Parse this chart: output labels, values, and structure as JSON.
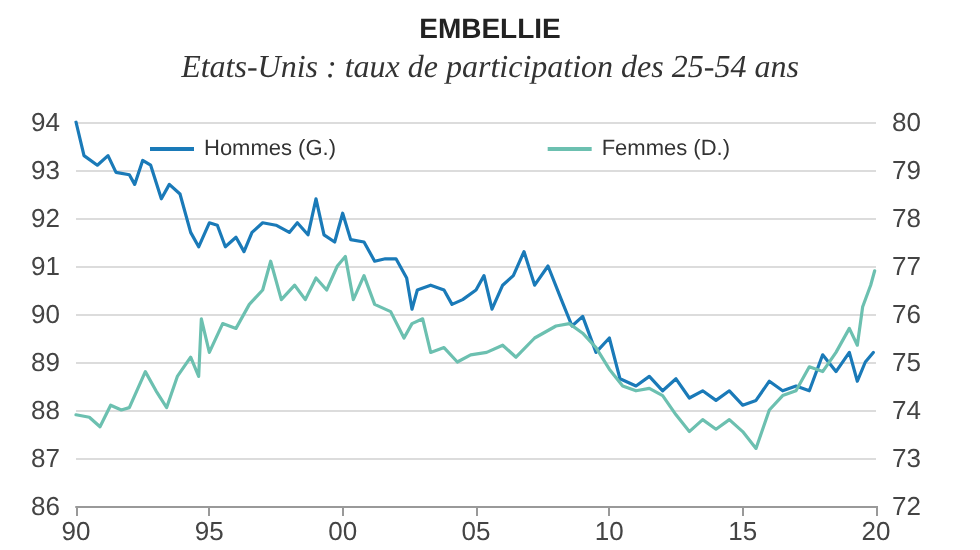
{
  "chart_data": {
    "type": "line",
    "title": "EMBELLIE",
    "subtitle": "Etats-Unis : taux de participation des 25-54 ans",
    "xlim": [
      1990,
      2020
    ],
    "xticks": [
      {
        "value": 1990,
        "label": "90"
      },
      {
        "value": 1995,
        "label": "95"
      },
      {
        "value": 2000,
        "label": "00"
      },
      {
        "value": 2005,
        "label": "05"
      },
      {
        "value": 2010,
        "label": "10"
      },
      {
        "value": 2015,
        "label": "15"
      },
      {
        "value": 2020,
        "label": "20"
      }
    ],
    "ylim": [
      86,
      94
    ],
    "yticks": [
      86,
      87,
      88,
      89,
      90,
      91,
      92,
      93,
      94
    ],
    "y2lim": [
      72,
      80
    ],
    "y2ticks": [
      72,
      73,
      74,
      75,
      76,
      77,
      78,
      79,
      80
    ],
    "grid": "y",
    "legend": "top",
    "marker": "none",
    "line_style": "solid",
    "series": [
      {
        "name": "Hommes (G.)",
        "color": "#1a7ab8",
        "axis": "y",
        "x": [
          1990.0,
          1990.3,
          1990.8,
          1991.2,
          1991.5,
          1992.0,
          1992.2,
          1992.5,
          1992.8,
          1993.2,
          1993.5,
          1993.9,
          1994.3,
          1994.6,
          1995.0,
          1995.3,
          1995.6,
          1996.0,
          1996.3,
          1996.6,
          1997.0,
          1997.5,
          1998.0,
          1998.3,
          1998.7,
          1999.0,
          1999.3,
          1999.7,
          2000.0,
          2000.3,
          2000.8,
          2001.2,
          2001.6,
          2002.0,
          2002.4,
          2002.6,
          2002.8,
          2003.3,
          2003.8,
          2004.1,
          2004.5,
          2005.0,
          2005.3,
          2005.6,
          2006.0,
          2006.4,
          2006.8,
          2007.2,
          2007.7,
          2008.2,
          2008.6,
          2009.0,
          2009.5,
          2010.0,
          2010.4,
          2011.0,
          2011.5,
          2012.0,
          2012.5,
          2013.0,
          2013.5,
          2014.0,
          2014.5,
          2015.0,
          2015.5,
          2016.0,
          2016.5,
          2017.0,
          2017.5,
          2018.0,
          2018.5,
          2019.0,
          2019.3,
          2019.6,
          2019.9
        ],
        "values": [
          94.0,
          93.3,
          93.1,
          93.3,
          92.95,
          92.9,
          92.7,
          93.2,
          93.1,
          92.4,
          92.7,
          92.5,
          91.7,
          91.4,
          91.9,
          91.85,
          91.4,
          91.6,
          91.3,
          91.7,
          91.9,
          91.85,
          91.7,
          91.9,
          91.65,
          92.4,
          91.65,
          91.5,
          92.1,
          91.55,
          91.5,
          91.1,
          91.15,
          91.15,
          90.75,
          90.1,
          90.5,
          90.6,
          90.5,
          90.2,
          90.3,
          90.5,
          90.8,
          90.1,
          90.6,
          90.8,
          91.3,
          90.6,
          91.0,
          90.3,
          89.75,
          89.95,
          89.2,
          89.5,
          88.65,
          88.5,
          88.7,
          88.4,
          88.65,
          88.25,
          88.4,
          88.2,
          88.4,
          88.1,
          88.2,
          88.6,
          88.4,
          88.5,
          88.4,
          89.15,
          88.8,
          89.2,
          88.6,
          89.0,
          89.2
        ]
      },
      {
        "name": "Femmes (D.)",
        "color": "#6cc0b0",
        "axis": "y2",
        "x": [
          1990.0,
          1990.5,
          1990.9,
          1991.3,
          1991.7,
          1992.0,
          1992.6,
          1993.0,
          1993.4,
          1993.8,
          1994.3,
          1994.6,
          1994.7,
          1995.0,
          1995.5,
          1996.0,
          1996.5,
          1997.0,
          1997.3,
          1997.7,
          1998.2,
          1998.6,
          1999.0,
          1999.4,
          1999.8,
          2000.1,
          2000.4,
          2000.8,
          2001.2,
          2001.8,
          2002.3,
          2002.6,
          2003.0,
          2003.3,
          2003.8,
          2004.3,
          2004.8,
          2005.4,
          2006.0,
          2006.5,
          2007.2,
          2008.0,
          2008.5,
          2009.0,
          2009.5,
          2010.0,
          2010.5,
          2011.0,
          2011.5,
          2012.0,
          2012.5,
          2013.0,
          2013.5,
          2014.0,
          2014.5,
          2015.0,
          2015.5,
          2016.0,
          2016.5,
          2017.0,
          2017.5,
          2018.0,
          2018.5,
          2019.0,
          2019.3,
          2019.5,
          2019.8,
          2019.95
        ],
        "values": [
          73.9,
          73.85,
          73.65,
          74.1,
          74.0,
          74.05,
          74.8,
          74.4,
          74.05,
          74.7,
          75.1,
          74.7,
          75.9,
          75.2,
          75.8,
          75.7,
          76.2,
          76.5,
          77.1,
          76.3,
          76.6,
          76.3,
          76.75,
          76.5,
          77.0,
          77.2,
          76.3,
          76.8,
          76.2,
          76.05,
          75.5,
          75.8,
          75.9,
          75.2,
          75.3,
          75.0,
          75.15,
          75.2,
          75.35,
          75.1,
          75.5,
          75.75,
          75.8,
          75.6,
          75.3,
          74.85,
          74.5,
          74.4,
          74.45,
          74.3,
          73.9,
          73.55,
          73.8,
          73.6,
          73.8,
          73.55,
          73.2,
          74.0,
          74.3,
          74.4,
          74.9,
          74.8,
          75.2,
          75.7,
          75.35,
          76.15,
          76.6,
          76.9
        ]
      }
    ]
  }
}
